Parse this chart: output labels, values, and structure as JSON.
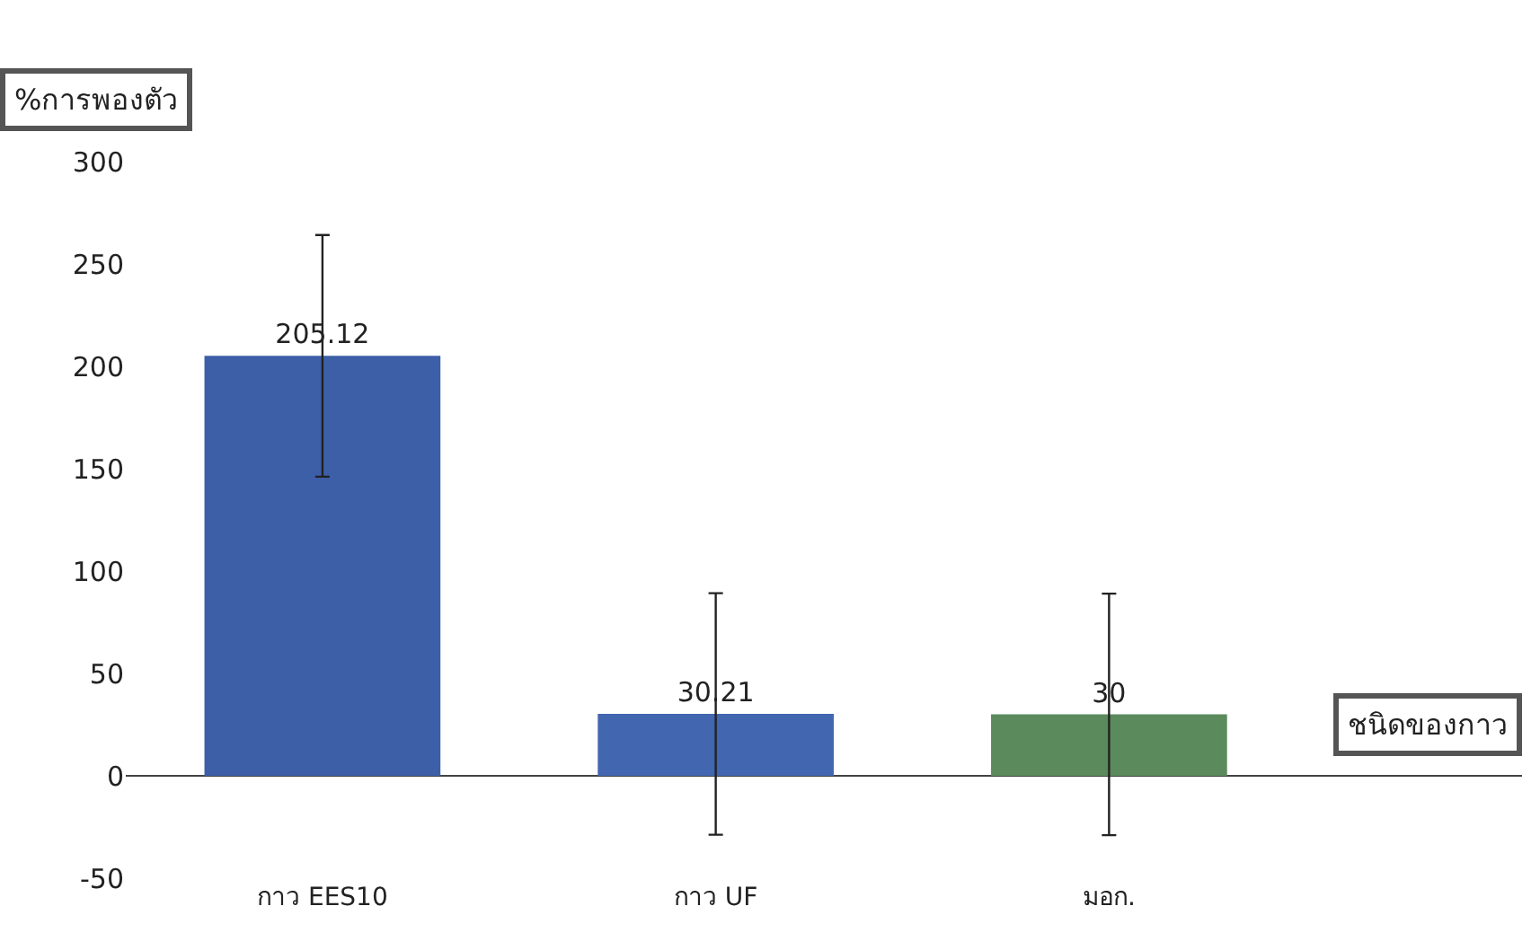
{
  "chart_data": {
    "type": "bar",
    "categories": [
      "กาว EES10",
      "กาว UF",
      "มอก."
    ],
    "values": [
      205.12,
      30.21,
      30
    ],
    "colors": [
      "#3d5fa8",
      "#4266b0",
      "#5b8a5c"
    ],
    "errors": [
      59,
      59,
      59
    ],
    "data_labels": true,
    "ylabel": "%การพองตัว",
    "xlabel": "ชนิดของกาว",
    "ylim": [
      -50,
      300
    ],
    "yticks": [
      -50,
      0,
      50,
      100,
      150,
      200,
      250,
      300
    ]
  }
}
